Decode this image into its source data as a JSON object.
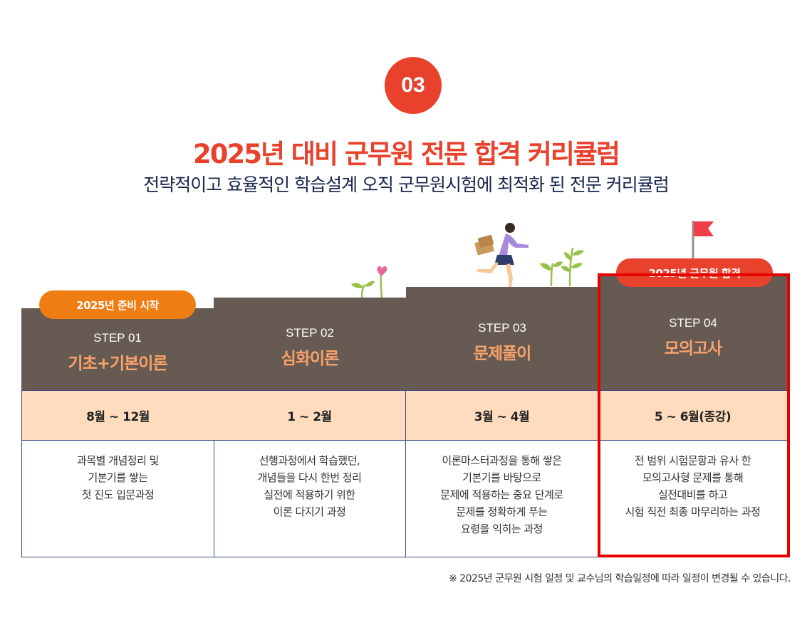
{
  "badge": "03",
  "title": "2025년 대비 군무원 전문 합격 커리큘럼",
  "subtitle": "전략적이고 효율적인 학습설계 오직 군무원시험에 최적화 된 전문 커리큘럼",
  "colors": {
    "accent_red": "#e8412c",
    "header_brown": "#675a52",
    "step_name_orange": "#f9a36a",
    "period_bg": "#fedcbd",
    "pill_orange": "#ef7d12",
    "highlight_border": "#e60000",
    "border_navy": "#3b4a84"
  },
  "pills": {
    "start": "2025년 준비 시작",
    "pass": "2025년 군무원 합격"
  },
  "steps": [
    {
      "label": "STEP 01",
      "name": "기초+기본이론",
      "period": "8월 ~ 12월",
      "desc": [
        "과목별 개념정리 및",
        "기본기를 쌓는",
        "첫 진도 입문과정"
      ]
    },
    {
      "label": "STEP 02",
      "name": "심화이론",
      "period": "1 ~ 2월",
      "desc": [
        "선행과정에서 학습했던,",
        "개념들을 다시 한번 정리",
        "실전에 적용하기 위한",
        "이론 다지기 과정"
      ]
    },
    {
      "label": "STEP 03",
      "name": "문제풀이",
      "period": "3월 ~ 4월",
      "desc": [
        "이론마스터과정을 통해 쌓은",
        "기본기를 바탕으로",
        "문제에 적용하는 중요 단계로",
        "문제를 정확하게 푸는",
        "요령을 익히는 과정"
      ]
    },
    {
      "label": "STEP 04",
      "name": "모의고사",
      "period": "5 ~ 6월(종강)",
      "desc": [
        "전 범위 시험문항과 유사 한",
        "모의고사형 문제를 통해",
        "실전대비를 하고",
        "시험 직전 최종 마무리하는 과정"
      ]
    }
  ],
  "note": "※ 2025년 군무원 시험 일정 및 교수님의 학습일정에 따라 일정이 변경될 수 있습니다.",
  "icons": [
    "flag-icon",
    "plant-icon",
    "heart-sprout-icon",
    "running-student-icon"
  ]
}
